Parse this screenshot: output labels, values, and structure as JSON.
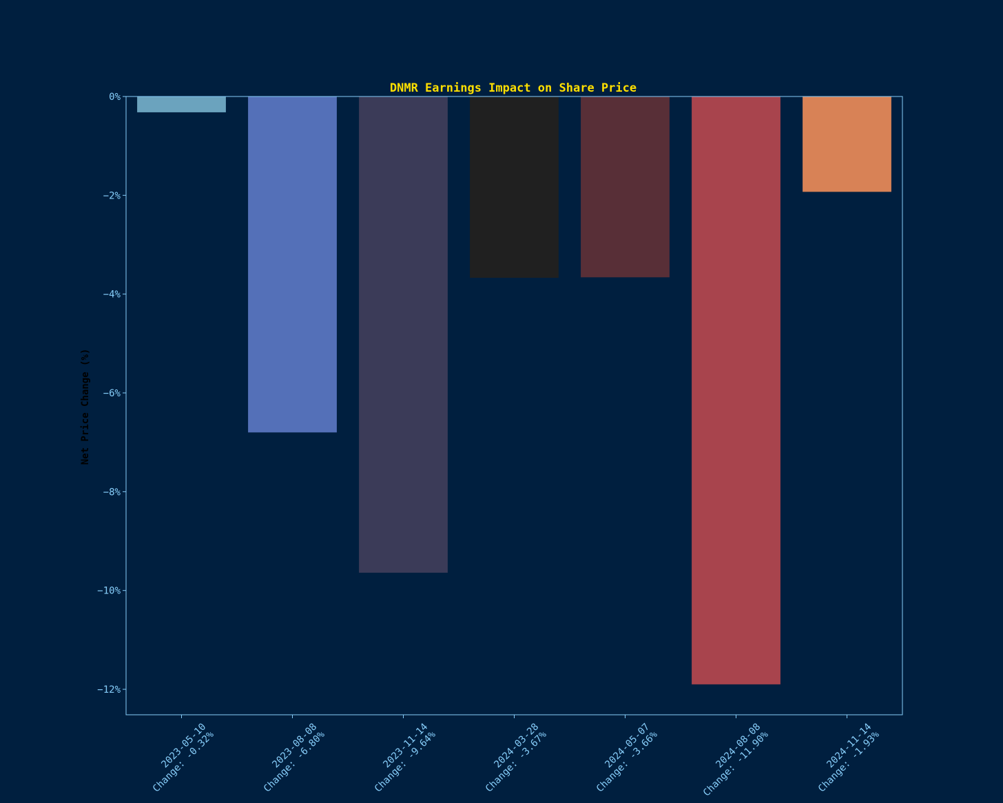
{
  "chart_data": {
    "type": "bar",
    "title": "DNMR Earnings Impact on Share Price",
    "ylabel": "Net Price Change (%)",
    "xlabel": "",
    "ylim": [
      -12.5,
      0
    ],
    "yticks": [
      0,
      -2,
      -4,
      -6,
      -8,
      -10,
      -12
    ],
    "ytick_labels": [
      "0%",
      "−2%",
      "−4%",
      "−6%",
      "−8%",
      "−10%",
      "−12%"
    ],
    "grid": false,
    "categories": [
      "2023-05-10",
      "2023-08-08",
      "2023-11-14",
      "2024-03-28",
      "2024-05-07",
      "2024-08-08",
      "2024-11-14"
    ],
    "category_labels": [
      {
        "date": "2023-05-10",
        "change": "Change: -0.32%"
      },
      {
        "date": "2023-08-08",
        "change": "Change: -6.80%"
      },
      {
        "date": "2023-11-14",
        "change": "Change: -9.64%"
      },
      {
        "date": "2024-03-28",
        "change": "Change: -3.67%"
      },
      {
        "date": "2024-05-07",
        "change": "Change: -3.66%"
      },
      {
        "date": "2024-08-08",
        "change": "Change: -11.90%"
      },
      {
        "date": "2024-11-14",
        "change": "Change: -1.93%"
      }
    ],
    "values": [
      -0.32,
      -6.8,
      -9.64,
      -3.67,
      -3.66,
      -11.9,
      -1.93
    ],
    "bar_colors": [
      "#6ba3be",
      "#5470b8",
      "#3b3b58",
      "#202020",
      "#582f37",
      "#a8444d",
      "#d88256"
    ],
    "background_color": "#001f3f",
    "axes_color": "#87cefa",
    "title_color": "#ffdf00"
  }
}
